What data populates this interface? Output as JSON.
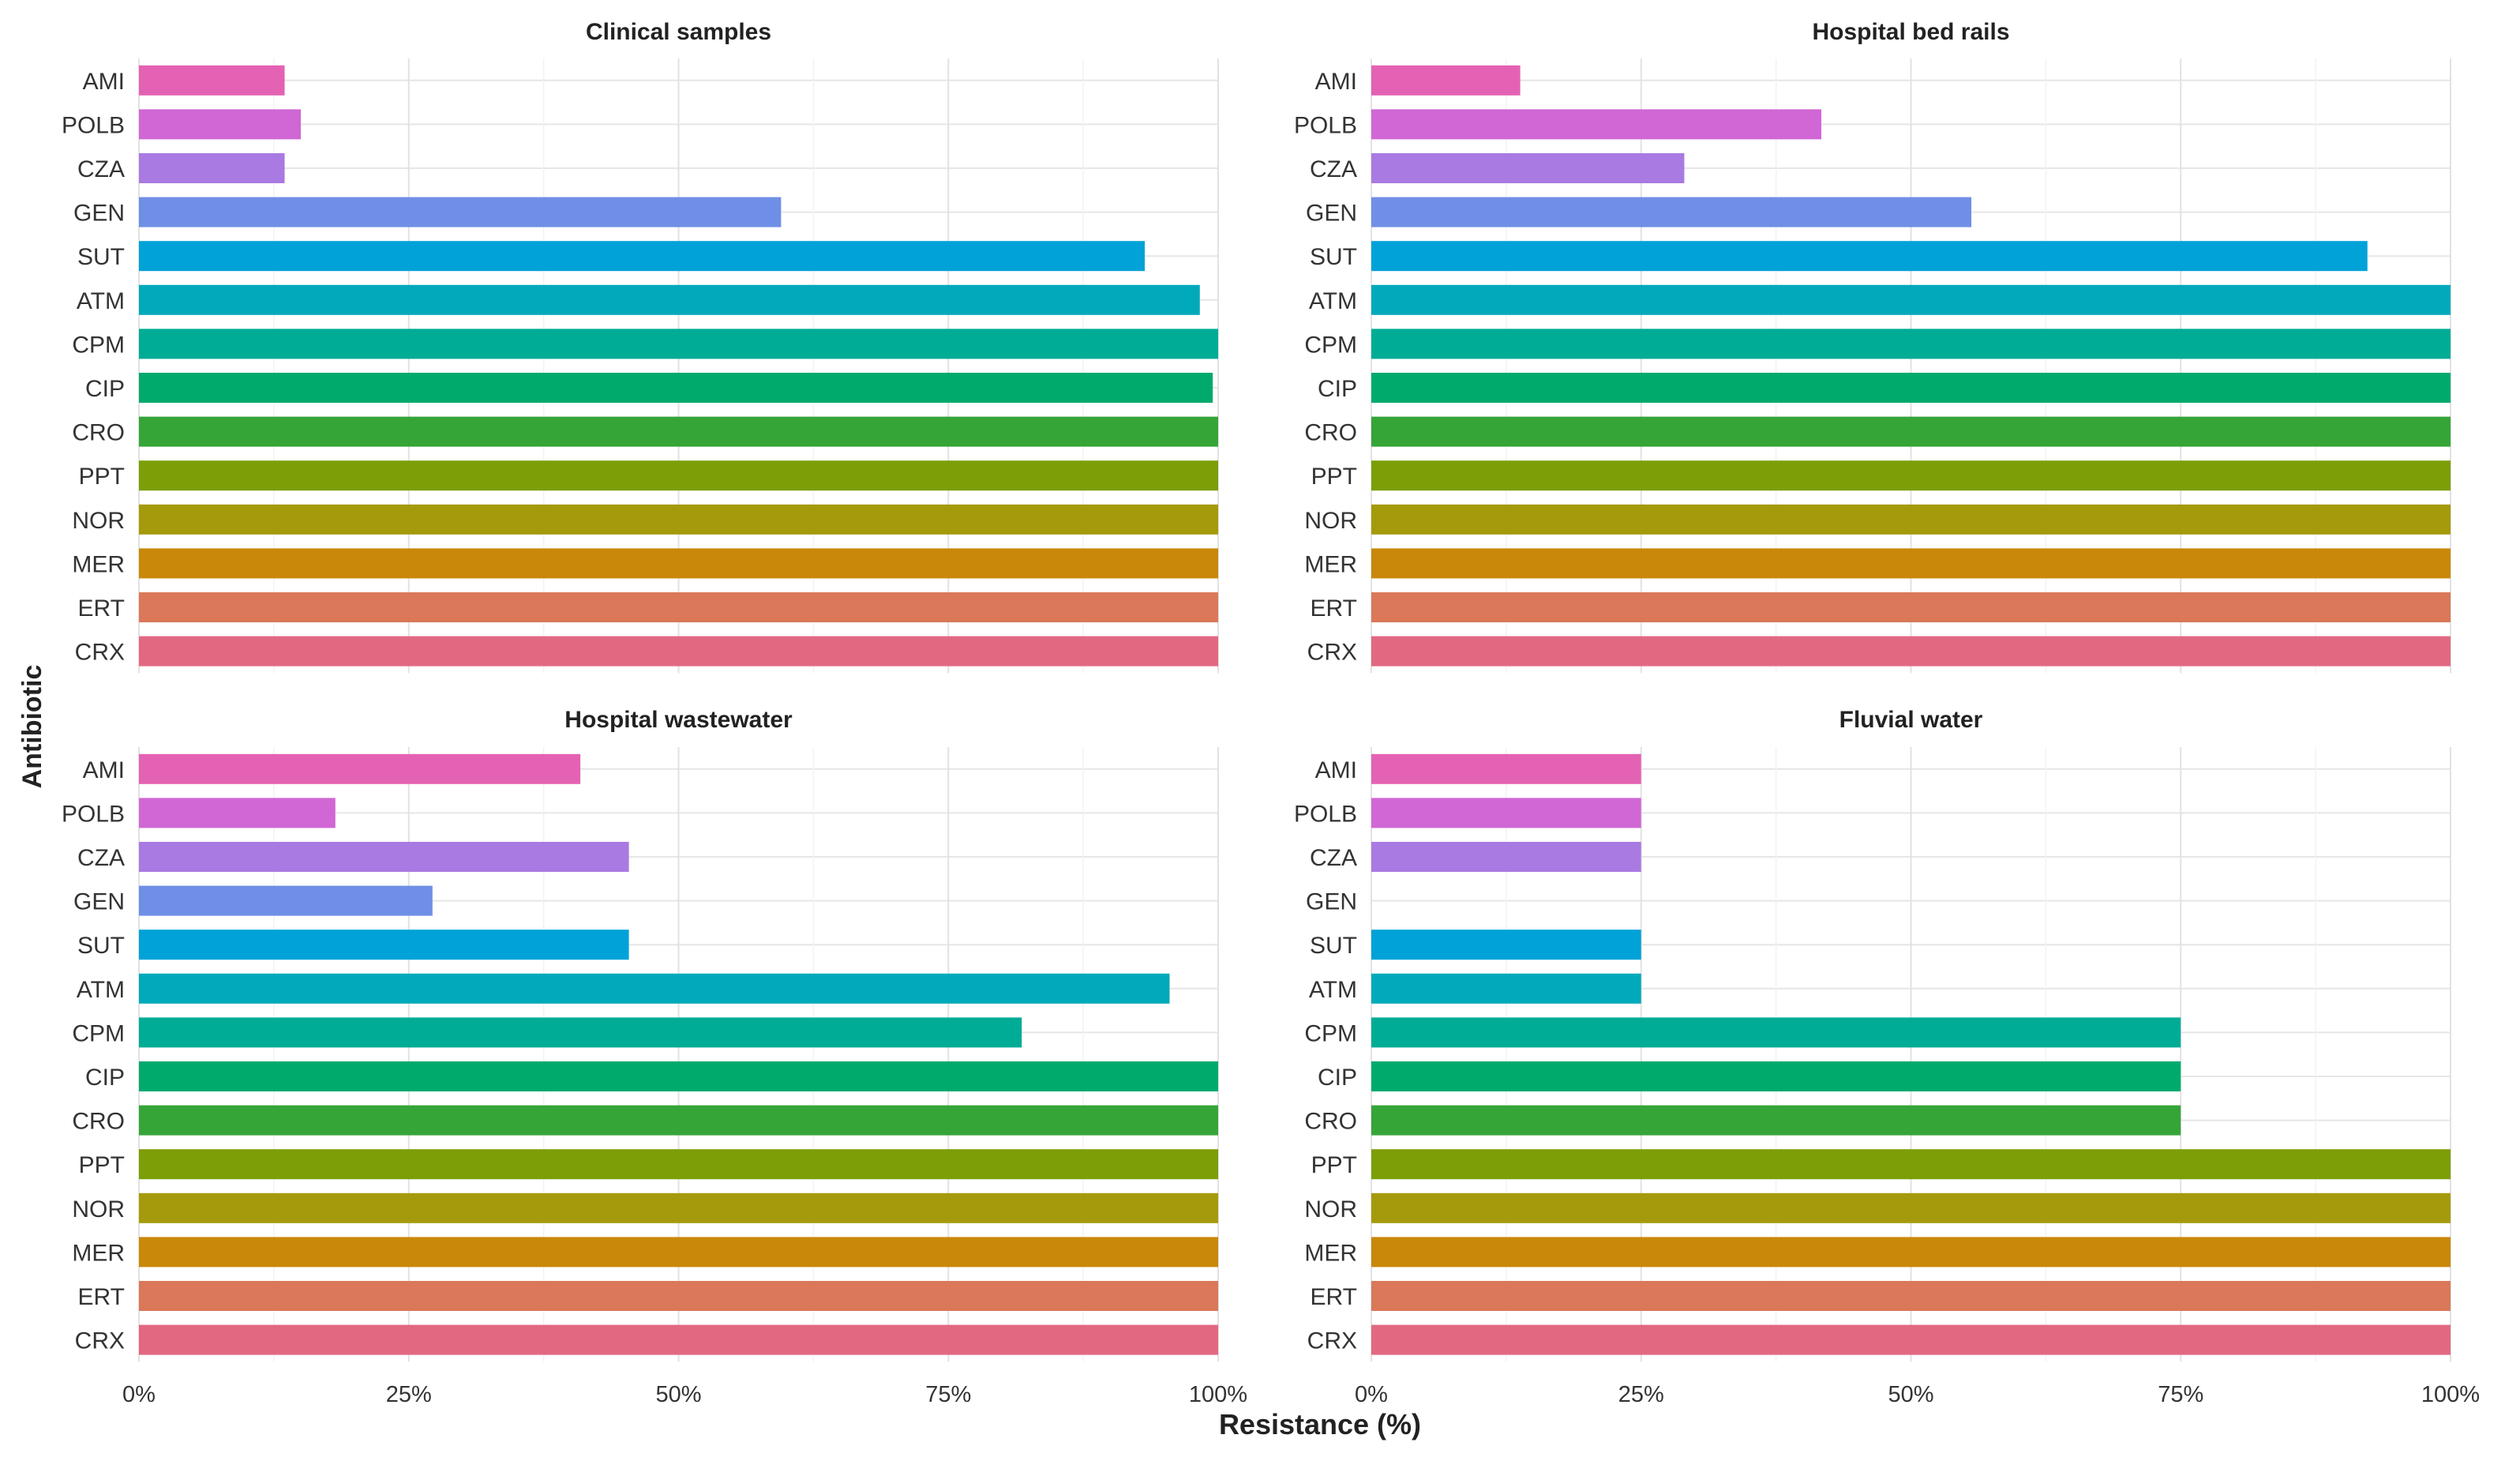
{
  "chart_data": {
    "type": "bar",
    "orientation": "horizontal",
    "xlabel": "Resistance (%)",
    "ylabel": "Antibiotic",
    "xlim": [
      0,
      100
    ],
    "x_ticks": [
      0,
      25,
      50,
      75,
      100
    ],
    "x_tick_labels": [
      "0%",
      "25%",
      "50%",
      "75%",
      "100%"
    ],
    "grid": true,
    "categories": [
      "AMI",
      "POLB",
      "CZA",
      "GEN",
      "SUT",
      "ATM",
      "CPM",
      "CIP",
      "CRO",
      "PPT",
      "NOR",
      "MER",
      "ERT",
      "CRX"
    ],
    "category_colors": [
      "#e462b3",
      "#d067d4",
      "#a97ae2",
      "#6f8fe6",
      "#00a2d8",
      "#00aabb",
      "#00ac95",
      "#00aa6c",
      "#35a538",
      "#7c9e07",
      "#a59a0b",
      "#c98809",
      "#da7859",
      "#e26881"
    ],
    "panels": [
      {
        "title": "Clinical samples",
        "values": [
          13.5,
          15,
          13.5,
          59.5,
          93.2,
          98.3,
          100,
          99.5,
          100,
          100,
          100,
          100,
          100,
          100
        ]
      },
      {
        "title": "Hospital bed rails",
        "values": [
          13.8,
          41.7,
          29,
          55.6,
          92.3,
          100,
          100,
          100,
          100,
          100,
          100,
          100,
          100,
          100
        ]
      },
      {
        "title": "Hospital wastewater",
        "values": [
          40.9,
          18.2,
          45.4,
          27.2,
          45.4,
          95.5,
          81.8,
          100,
          100,
          100,
          100,
          100,
          100,
          100
        ]
      },
      {
        "title": "Fluvial water",
        "values": [
          25,
          25,
          25,
          0,
          25,
          25,
          75,
          75,
          75,
          100,
          100,
          100,
          100,
          100
        ]
      }
    ]
  }
}
